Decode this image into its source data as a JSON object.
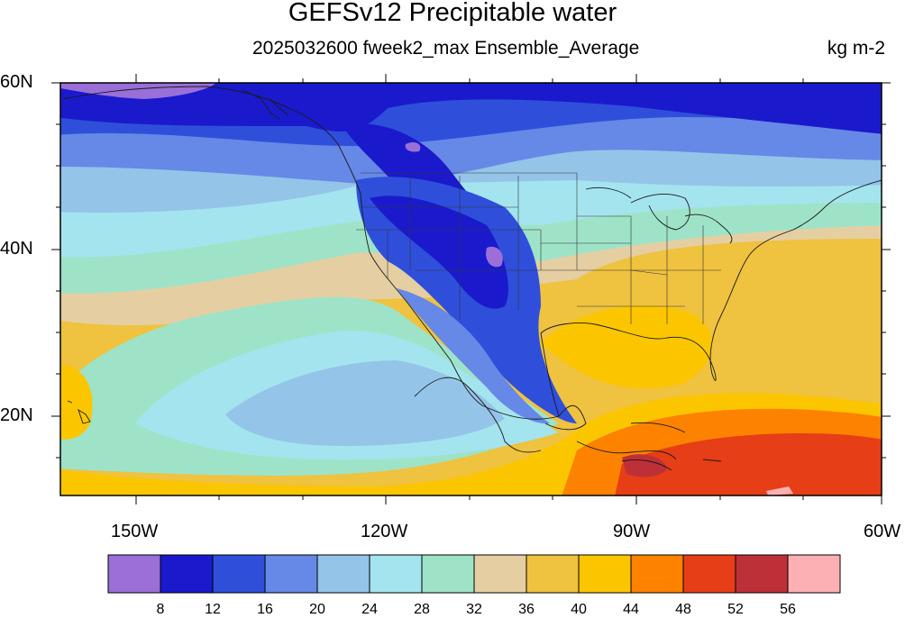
{
  "title": "GEFSv12 Precipitable water",
  "subtitle": "2025032600 fweek2_max Ensemble_Average",
  "units": "kg m-2",
  "lat_axis": {
    "labels": [
      "60N",
      "40N",
      "20N"
    ],
    "values": [
      60,
      40,
      20
    ],
    "range": [
      10,
      60
    ]
  },
  "lon_axis": {
    "labels": [
      "150W",
      "120W",
      "90W",
      "60W"
    ],
    "values": [
      -150,
      -120,
      -90,
      -60
    ],
    "range": [
      -159,
      -60
    ]
  },
  "colorbar": {
    "labels": [
      "8",
      "12",
      "16",
      "20",
      "24",
      "28",
      "32",
      "36",
      "40",
      "44",
      "48",
      "52",
      "56"
    ],
    "colors": [
      "#9a6fd8",
      "#1a1acc",
      "#2f4fdb",
      "#6688e6",
      "#94c4e8",
      "#a4e4ee",
      "#9ee3c8",
      "#e5cfa2",
      "#efc23f",
      "#fbc600",
      "#fd8200",
      "#e63e16",
      "#bd3038",
      "#fcb0b4"
    ]
  }
}
